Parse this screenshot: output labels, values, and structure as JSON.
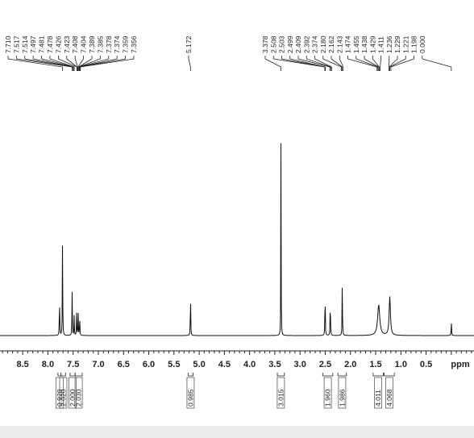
{
  "chart_data": {
    "type": "line",
    "xlabel": "ppm",
    "xlim": [
      8.95,
      -0.45
    ],
    "x_reversed": true,
    "grid": false,
    "x_ticks": [
      "8.5",
      "8.0",
      "7.5",
      "7.0",
      "6.5",
      "6.0",
      "5.5",
      "5.0",
      "4.5",
      "4.0",
      "3.5",
      "3.0",
      "2.5",
      "2.0",
      "1.5",
      "1.0",
      "0.5"
    ],
    "peak_labels": [
      "7.710",
      "7.517",
      "7.514",
      "7.497",
      "7.481",
      "7.478",
      "7.426",
      "7.423",
      "7.408",
      "7.404",
      "7.389",
      "7.385",
      "7.378",
      "7.374",
      "7.359",
      "7.356",
      "5.172",
      "3.378",
      "2.508",
      "2.503",
      "2.499",
      "2.409",
      "2.392",
      "2.374",
      "2.180",
      "2.162",
      "2.143",
      "1.474",
      "1.455",
      "1.438",
      "1.429",
      "1.411",
      "1.236",
      "1.229",
      "1.221",
      "1.198",
      "0.000"
    ],
    "peaks": [
      {
        "ppm": 7.77,
        "height": 0.21,
        "width": 0.008
      },
      {
        "ppm": 7.71,
        "height": 0.47,
        "width": 0.008
      },
      {
        "ppm": 7.52,
        "height": 0.22,
        "width": 0.008
      },
      {
        "ppm": 7.48,
        "height": 0.1,
        "width": 0.008
      },
      {
        "ppm": 7.43,
        "height": 0.12,
        "width": 0.008
      },
      {
        "ppm": 7.4,
        "height": 0.11,
        "width": 0.008
      },
      {
        "ppm": 7.37,
        "height": 0.1,
        "width": 0.008
      },
      {
        "ppm": 5.172,
        "height": 0.23,
        "width": 0.008
      },
      {
        "ppm": 3.378,
        "height": 1.0,
        "width": 0.006
      },
      {
        "ppm": 2.503,
        "height": 0.25,
        "width": 0.008
      },
      {
        "ppm": 2.4,
        "height": 0.2,
        "width": 0.008
      },
      {
        "ppm": 2.162,
        "height": 0.28,
        "width": 0.008
      },
      {
        "ppm": 1.44,
        "height": 0.15,
        "width": 0.05
      },
      {
        "ppm": 1.22,
        "height": 0.19,
        "width": 0.03
      },
      {
        "ppm": 0.0,
        "height": 0.08,
        "width": 0.008
      }
    ],
    "integrals": [
      {
        "from": 7.8,
        "to": 7.74,
        "value": "0.928"
      },
      {
        "from": 7.74,
        "to": 7.65,
        "value": "2.020"
      },
      {
        "from": 7.56,
        "to": 7.46,
        "value": "2.000"
      },
      {
        "from": 7.46,
        "to": 7.32,
        "value": "2.030"
      },
      {
        "from": 5.22,
        "to": 5.12,
        "value": "0.985"
      },
      {
        "from": 3.45,
        "to": 3.31,
        "value": "3.015"
      },
      {
        "from": 2.55,
        "to": 2.35,
        "value": "1.960"
      },
      {
        "from": 2.25,
        "to": 2.08,
        "value": "1.986"
      },
      {
        "from": 1.55,
        "to": 1.35,
        "value": "4.011"
      },
      {
        "from": 1.33,
        "to": 1.13,
        "value": "4.068"
      }
    ]
  }
}
